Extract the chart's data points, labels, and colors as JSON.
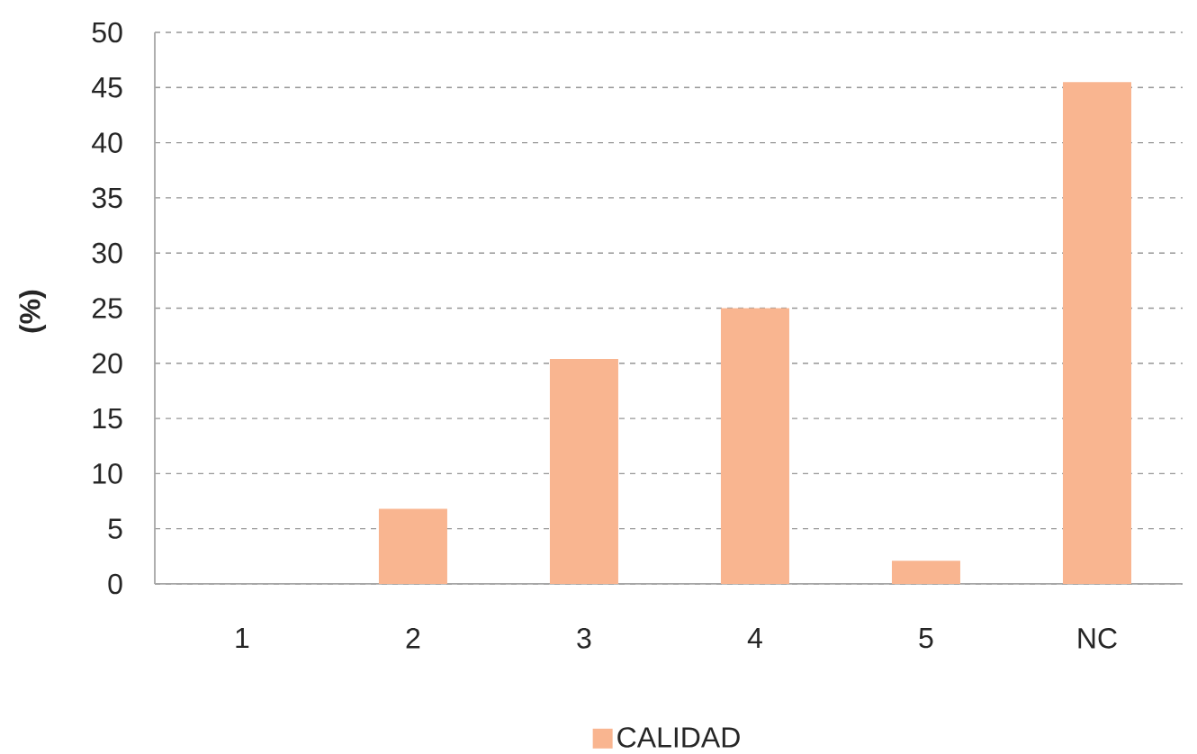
{
  "chart_data": {
    "type": "bar",
    "ylabel": "(%)",
    "categories": [
      "1",
      "2",
      "3",
      "4",
      "5",
      "NC"
    ],
    "series": [
      {
        "name": "CALIDAD",
        "color": "#f9b590",
        "values": [
          0,
          6.8,
          20.4,
          25.0,
          2.1,
          45.5
        ]
      }
    ],
    "ylim": [
      0,
      50
    ],
    "yticks": [
      0,
      5,
      10,
      15,
      20,
      25,
      30,
      35,
      40,
      45,
      50
    ],
    "grid": "y",
    "legend": "bottom"
  }
}
